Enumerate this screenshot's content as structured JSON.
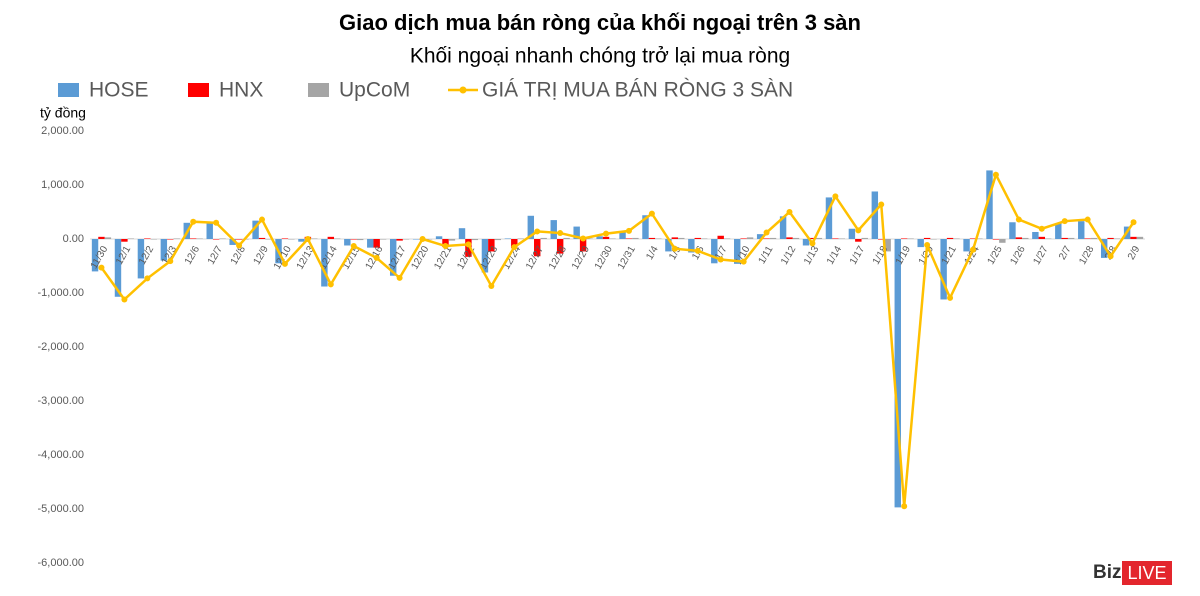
{
  "chart_data": {
    "type": "bar",
    "title": "Giao dịch mua bán ròng của khối ngoại trên 3 sàn",
    "subtitle": "Khối ngoại nhanh chóng trở lại mua ròng",
    "y_label": "tỷ đồng",
    "categories": [
      "11/30",
      "12/1",
      "12/2",
      "12/3",
      "12/6",
      "12/7",
      "12/8",
      "12/9",
      "12/10",
      "12/13",
      "12/14",
      "12/15",
      "12/16",
      "12/17",
      "12/20",
      "12/21",
      "12/22",
      "12/23",
      "12/24",
      "12/27",
      "12/28",
      "12/29",
      "12/30",
      "12/31",
      "1/4",
      "1/5",
      "1/6",
      "1/7",
      "1/10",
      "1/11",
      "1/12",
      "1/13",
      "1/14",
      "1/17",
      "1/18",
      "1/19",
      "1/20",
      "1/21",
      "1/24",
      "1/25",
      "1/26",
      "1/27",
      "2/7",
      "1/28",
      "2/8",
      "2/9"
    ],
    "series": [
      {
        "name": "HOSE",
        "type": "bar",
        "color": "#5b9bd5",
        "values": [
          -600,
          -1070,
          -730,
          -400,
          300,
          290,
          -110,
          340,
          -450,
          -50,
          -880,
          -120,
          -160,
          -680,
          0,
          50,
          200,
          -620,
          10,
          430,
          350,
          230,
          50,
          130,
          440,
          -230,
          -250,
          -450,
          -460,
          90,
          420,
          -120,
          770,
          190,
          880,
          -4970,
          -150,
          -1120,
          -230,
          1270,
          310,
          130,
          290,
          330,
          -350,
          230
        ]
      },
      {
        "name": "HNX",
        "type": "bar",
        "color": "#ff0000",
        "values": [
          40,
          -50,
          10,
          0,
          10,
          0,
          -10,
          20,
          10,
          40,
          40,
          0,
          -160,
          -30,
          0,
          -150,
          -330,
          -230,
          -170,
          -320,
          -270,
          -230,
          40,
          10,
          20,
          30,
          20,
          60,
          10,
          10,
          30,
          20,
          10,
          -50,
          -10,
          10,
          20,
          20,
          10,
          -10,
          30,
          40,
          20,
          10,
          20,
          40
        ]
      },
      {
        "name": "UpCoM",
        "type": "bar",
        "color": "#a5a5a5",
        "values": [
          30,
          10,
          0,
          10,
          10,
          10,
          0,
          0,
          0,
          10,
          10,
          -20,
          -10,
          0,
          0,
          -30,
          -20,
          -20,
          10,
          20,
          20,
          10,
          10,
          20,
          10,
          20,
          10,
          10,
          30,
          20,
          20,
          20,
          10,
          20,
          -230,
          10,
          0,
          10,
          10,
          -70,
          20,
          10,
          20,
          20,
          10,
          40
        ]
      },
      {
        "name": "GIÁ TRỊ MUA BÁN RÒNG 3 SÀN",
        "type": "line",
        "color": "#ffc000",
        "values": [
          -530,
          -1120,
          -730,
          -410,
          320,
          300,
          -120,
          360,
          -460,
          0,
          -840,
          -130,
          -350,
          -720,
          0,
          -130,
          -100,
          -870,
          -150,
          140,
          110,
          10,
          100,
          150,
          470,
          -180,
          -220,
          -380,
          -420,
          120,
          500,
          -80,
          790,
          160,
          640,
          -4950,
          -110,
          -1090,
          -200,
          1190,
          360,
          190,
          330,
          360,
          -320,
          310
        ]
      }
    ],
    "ylim": [
      -6000,
      2000
    ],
    "yticks": [
      {
        "value": -6000,
        "label": "-6,000.00"
      },
      {
        "value": -5000,
        "label": "-5,000.00"
      },
      {
        "value": -4000,
        "label": "-4,000.00"
      },
      {
        "value": -3000,
        "label": "-3,000.00"
      },
      {
        "value": -2000,
        "label": "-2,000.00"
      },
      {
        "value": -1000,
        "label": "-1,000.00"
      },
      {
        "value": 0,
        "label": "0.00"
      },
      {
        "value": 1000,
        "label": "1,000.00"
      },
      {
        "value": 2000,
        "label": "2,000.00"
      }
    ],
    "grid": false,
    "legend": "top"
  },
  "brand": {
    "left": "Biz",
    "right": "LIVE"
  }
}
